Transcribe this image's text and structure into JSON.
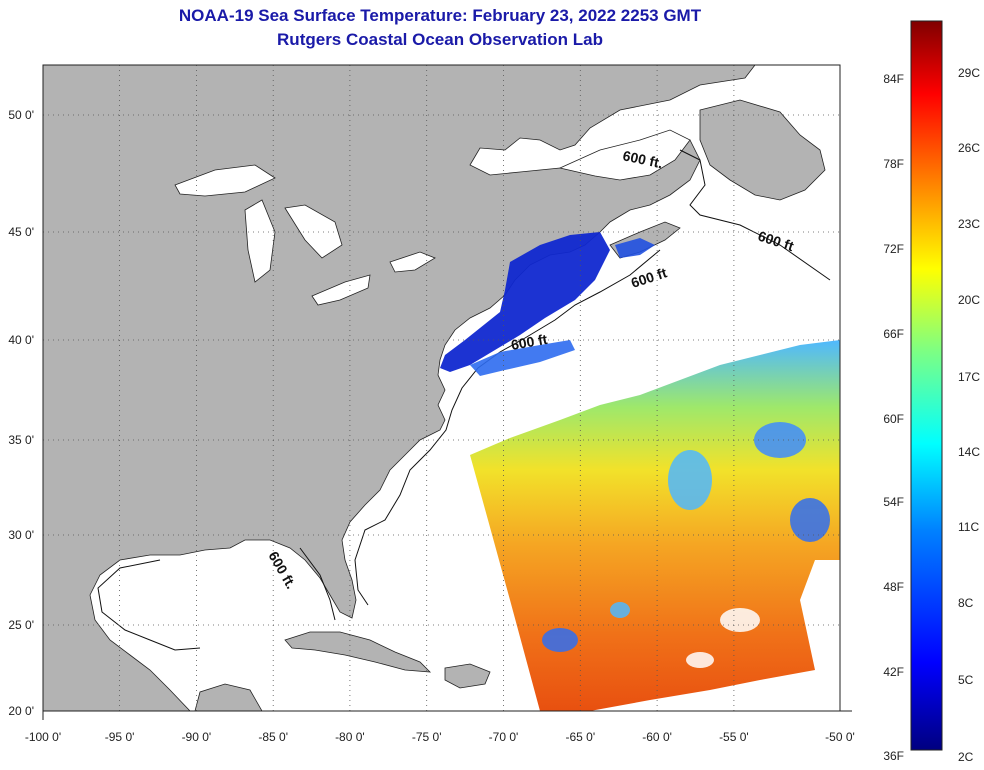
{
  "header": {
    "title": "NOAA-19 Sea Surface Temperature:  February 23, 2022 2253 GMT",
    "subtitle": "Rutgers Coastal Ocean Observation Lab"
  },
  "map": {
    "longitude_ticks": [
      "-100 0'",
      "-95 0'",
      "-90 0'",
      "-85 0'",
      "-80 0'",
      "-75 0'",
      "-70 0'",
      "-65 0'",
      "-60 0'",
      "-55 0'",
      "-50 0'"
    ],
    "latitude_ticks": [
      "50 0'",
      "45 0'",
      "40 0'",
      "35 0'",
      "30 0'",
      "25 0'",
      "20 0'"
    ],
    "contour_labels": [
      "600 ft.",
      "600 ft",
      "600 ft",
      "600 ft",
      "600 ft."
    ],
    "colors": {
      "land": "#b3b3b3",
      "ocean": "#ffffff",
      "grid": "#555555"
    }
  },
  "colorbar": {
    "fahrenheit_ticks": [
      "84F",
      "78F",
      "72F",
      "66F",
      "60F",
      "54F",
      "48F",
      "42F",
      "36F"
    ],
    "celsius_ticks": [
      "29C",
      "26C",
      "23C",
      "20C",
      "17C",
      "14C",
      "11C",
      "8C",
      "5C",
      "2C"
    ],
    "gradient": [
      "#000080",
      "#0000ff",
      "#0080ff",
      "#00ffff",
      "#80ff80",
      "#ffff00",
      "#ff8000",
      "#ff0000",
      "#800000"
    ]
  }
}
